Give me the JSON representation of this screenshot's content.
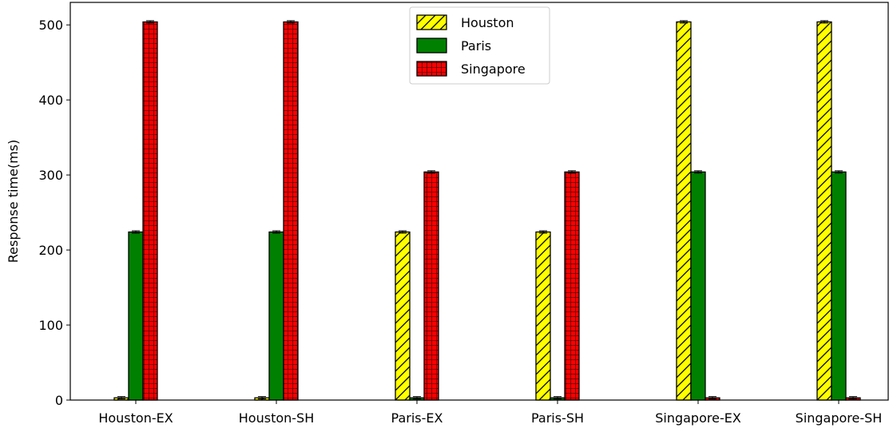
{
  "chart_data": {
    "type": "bar",
    "title": "",
    "xlabel": "",
    "ylabel": "Response time(ms)",
    "ylim": [
      0,
      530
    ],
    "yticks": [
      0,
      100,
      200,
      300,
      400,
      500
    ],
    "categories": [
      "Houston-EX",
      "Houston-SH",
      "Paris-EX",
      "Paris-SH",
      "Singapore-EX",
      "Singapore-SH"
    ],
    "series": [
      {
        "name": "Houston",
        "color": "#ffff00",
        "hatch": "diagonal",
        "values": [
          3,
          3,
          224,
          224,
          504,
          504
        ]
      },
      {
        "name": "Paris",
        "color": "#008000",
        "hatch": "none",
        "values": [
          224,
          224,
          3,
          3,
          304,
          304
        ]
      },
      {
        "name": "Singapore",
        "color": "#ff0000",
        "hatch": "grid",
        "values": [
          504,
          504,
          304,
          304,
          3,
          3
        ]
      }
    ],
    "legend_position": "top-center",
    "grid": false
  }
}
